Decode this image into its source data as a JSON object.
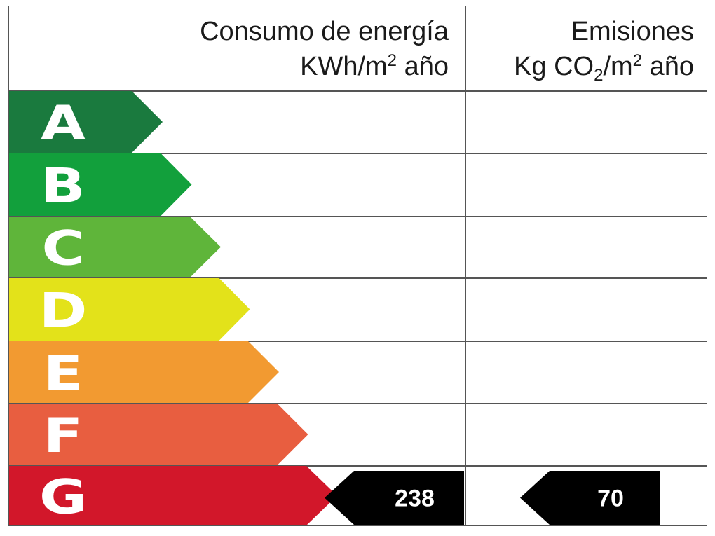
{
  "header": {
    "energy_line1": "Consumo de energía",
    "energy_line2_pre": "KWh/m",
    "energy_line2_sup": "2",
    "energy_line2_post": " año",
    "emissions_line1": "Emisiones",
    "emissions_line2_pre": "Kg CO",
    "emissions_line2_sub": "2",
    "emissions_line2_mid": "/m",
    "emissions_line2_sup": "2",
    "emissions_line2_post": " año"
  },
  "classes": [
    {
      "letter": "A",
      "color": "#1a7a3e"
    },
    {
      "letter": "B",
      "color": "#12a03c"
    },
    {
      "letter": "C",
      "color": "#5fb53a"
    },
    {
      "letter": "D",
      "color": "#e3e21a"
    },
    {
      "letter": "E",
      "color": "#f29a31"
    },
    {
      "letter": "F",
      "color": "#e85e40"
    },
    {
      "letter": "G",
      "color": "#d2172a"
    }
  ],
  "rating": {
    "class": "G",
    "energy_value": "238",
    "emissions_value": "70",
    "indicator_color": "#000000"
  }
}
